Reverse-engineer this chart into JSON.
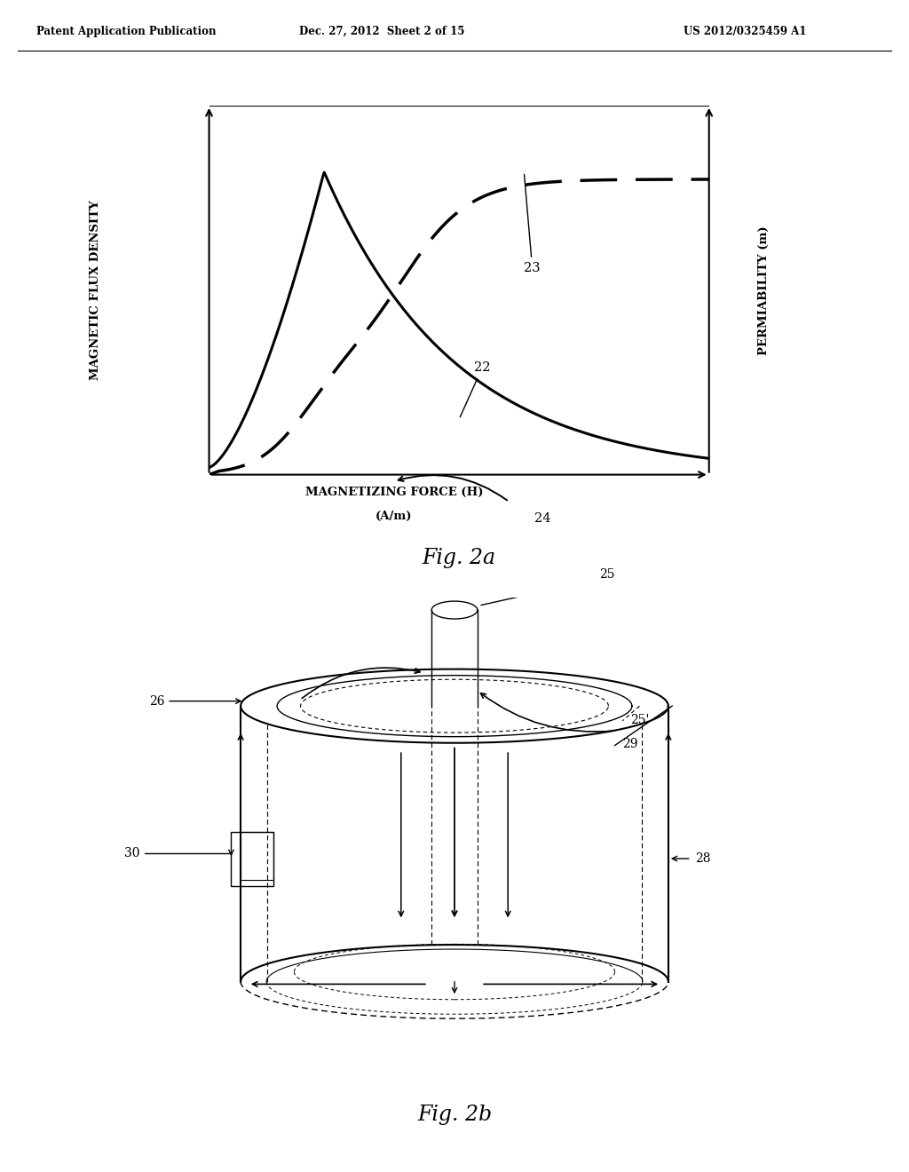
{
  "header_left": "Patent Application Publication",
  "header_mid": "Dec. 27, 2012  Sheet 2 of 15",
  "header_right": "US 2012/0325459 A1",
  "fig2a_ylabel_left": "MAGNETIC FLUX DENSITY",
  "fig2a_ylabel_right": "PERMIABILITY (m)",
  "fig2a_xlabel_line1": "MAGNETIZING FORCE (H)",
  "fig2a_xlabel_line2": "(A/m)",
  "fig2a_caption": "Fig. 2a",
  "fig2b_caption": "Fig. 2b",
  "label_22": "22",
  "label_23": "23",
  "label_24": "24",
  "label_25": "25",
  "label_25p": "25'",
  "label_26": "26",
  "label_28": "28",
  "label_29": "29",
  "label_30": "30",
  "bg_color": "#ffffff",
  "line_color": "#000000"
}
